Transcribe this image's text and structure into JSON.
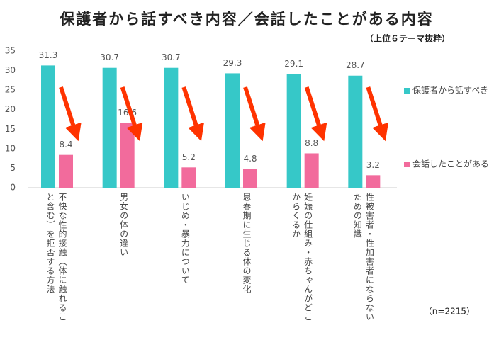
{
  "chart_data": {
    "type": "bar",
    "title": "保護者から話すべき内容／会話したことがある内容",
    "subtitle": "（上位６テーマ抜粋）",
    "note": "（n=2215）",
    "categories": [
      "不快な性的接触（体に触れること含む）を拒否する方法",
      "男女の体の違い",
      "いじめ・暴力について",
      "思春期に生じる体の変化",
      "妊娠の仕組み・赤ちゃんがどこからくるか",
      "性被害者・性加害者にならないための知識"
    ],
    "series": [
      {
        "name": "保護者から話すべき",
        "color": "#36c8c8",
        "values": [
          31.3,
          30.7,
          30.7,
          29.3,
          29.1,
          28.7
        ]
      },
      {
        "name": "会話したことがある",
        "color": "#f26b9c",
        "values": [
          8.4,
          16.6,
          5.2,
          4.8,
          8.8,
          3.2
        ]
      }
    ],
    "ylim": [
      0,
      35
    ],
    "yticks": [
      0,
      5,
      10,
      15,
      20,
      25,
      30,
      35
    ],
    "grid": false,
    "legend": "right"
  }
}
